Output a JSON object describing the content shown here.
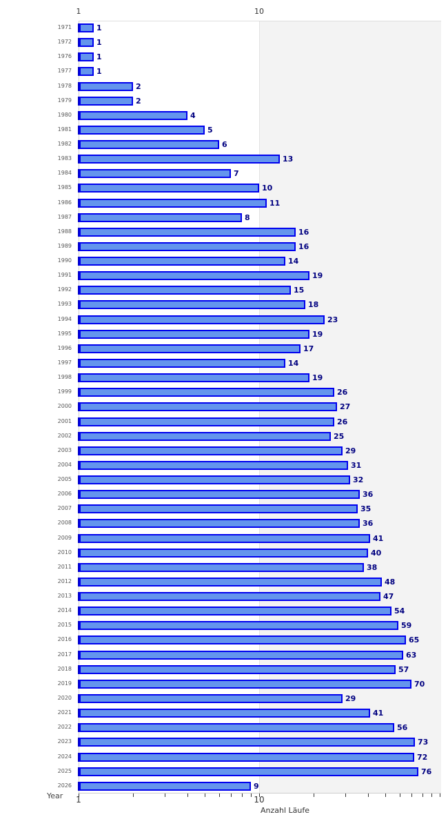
{
  "chart_data": {
    "type": "bar",
    "orientation": "horizontal",
    "title": "",
    "xlabel": "Anzahl Läufe",
    "ylabel": "Year",
    "x_scale": "log",
    "xlim": [
      1,
      100
    ],
    "x_ticks_labeled": [
      "1",
      "10"
    ],
    "grid": false,
    "legend": null,
    "categories": [
      "1971",
      "1972",
      "1976",
      "1977",
      "1978",
      "1979",
      "1980",
      "1981",
      "1982",
      "1983",
      "1984",
      "1985",
      "1986",
      "1987",
      "1988",
      "1989",
      "1990",
      "1991",
      "1992",
      "1993",
      "1994",
      "1995",
      "1996",
      "1997",
      "1998",
      "1999",
      "2000",
      "2001",
      "2002",
      "2003",
      "2004",
      "2005",
      "2006",
      "2007",
      "2008",
      "2009",
      "2010",
      "2011",
      "2012",
      "2013",
      "2014",
      "2015",
      "2016",
      "2017",
      "2018",
      "2019",
      "2020",
      "2021",
      "2022",
      "2023",
      "2024",
      "2025",
      "2026"
    ],
    "values": [
      1,
      1,
      1,
      1,
      2,
      2,
      4,
      5,
      6,
      13,
      7,
      10,
      11,
      8,
      16,
      16,
      14,
      19,
      15,
      18,
      23,
      19,
      17,
      14,
      19,
      26,
      27,
      26,
      25,
      29,
      31,
      32,
      36,
      35,
      36,
      41,
      40,
      38,
      48,
      47,
      54,
      59,
      65,
      63,
      57,
      70,
      29,
      41,
      56,
      73,
      72,
      76,
      9
    ],
    "colors": {
      "bar_fill": "#6495ed",
      "bar_border": "#0000ee",
      "value_label": "#000080",
      "shade": "#f3f3f3"
    }
  },
  "axis": {
    "top_tick_1": "1",
    "top_tick_10": "10",
    "bottom_tick_1": "1",
    "bottom_tick_10": "10",
    "x_title": "Anzahl Läufe",
    "y_title": "Year"
  }
}
